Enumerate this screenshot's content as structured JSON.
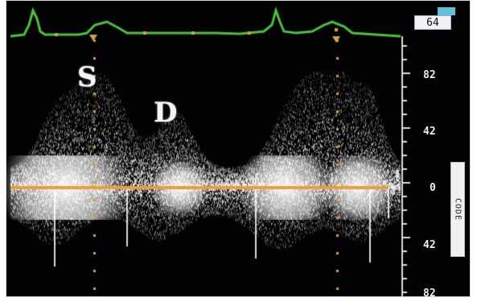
{
  "peaks": {
    "systolic": "S",
    "diastolic": "D"
  },
  "heart_rate": "64",
  "scale": {
    "top": "82",
    "upper": "42",
    "zero": "0",
    "lower": "42",
    "bottom": "82"
  },
  "side_label": "CODE",
  "colors": {
    "background": "#020202",
    "ecg_trace": "#4cc040",
    "baseline": "#e8a030",
    "spectrum": "#ffffff",
    "markers": "#d8a040"
  }
}
